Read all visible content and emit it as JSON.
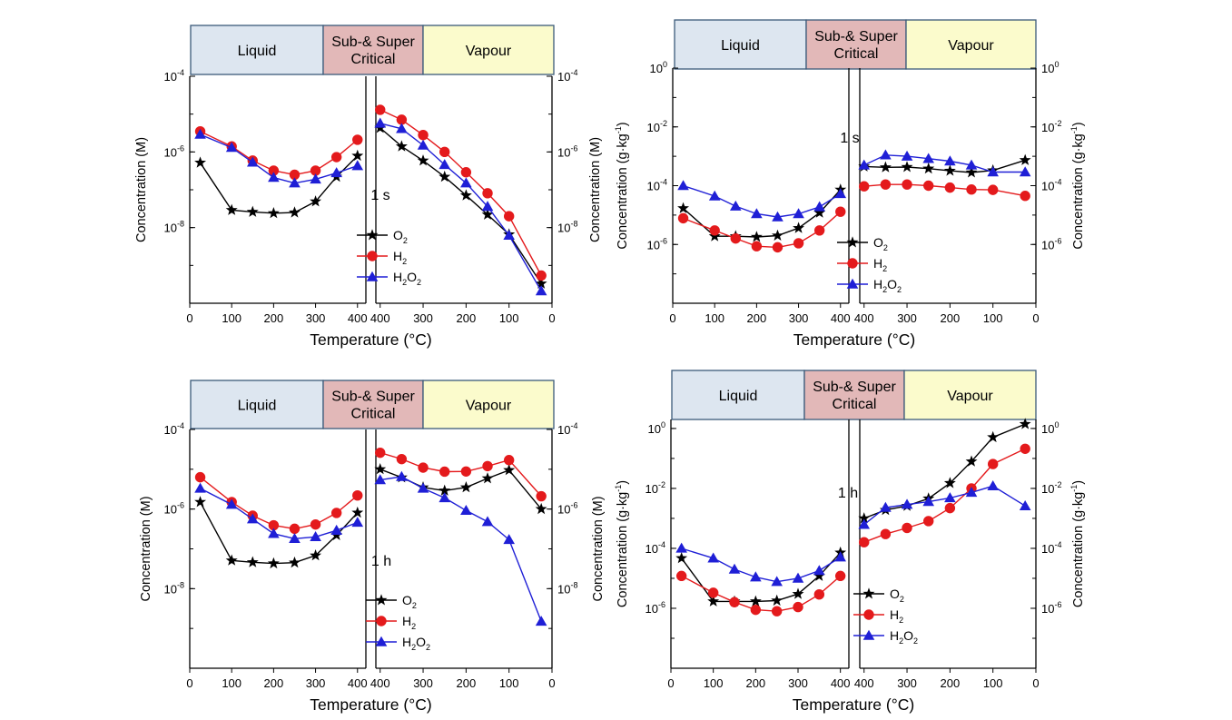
{
  "colors": {
    "O2": "#000000",
    "H2": "#e41a1c",
    "H2O2": "#1f1fd6",
    "liquid_bg": "#dde6f0",
    "critical_bg": "#e2b8b8",
    "vapour_bg": "#fbfbcc",
    "banner_border": "#3b5a7a"
  },
  "chart_data": [
    {
      "id": "top-left",
      "type": "line",
      "annotation": "1 s",
      "unit": "M",
      "xlabel": "Temperature (°C)",
      "ylabel_left": "Concentration (M)",
      "ylabel_right": "Concentration (M)",
      "scale": "log",
      "banner": {
        "liquid": "Liquid",
        "critical": [
          "Sub-& Super",
          "Critical"
        ],
        "vapour": "Vapour"
      },
      "left_panel": {
        "xlim": [
          0,
          420
        ],
        "xticks": [
          0,
          100,
          200,
          300,
          400
        ],
        "ylim_exp": [
          -10,
          -4
        ],
        "yticks_exp": [
          -4,
          -6,
          -8
        ],
        "series": [
          {
            "name": "O",
            "sub": "2",
            "key": "O2",
            "marker": "star",
            "x": [
              25,
              100,
              150,
              200,
              250,
              300,
              350,
              400
            ],
            "y": [
              5.2e-07,
              2.9e-08,
              2.6e-08,
              2.4e-08,
              2.5e-08,
              4.9e-08,
              2.2e-07,
              7.9e-07
            ]
          },
          {
            "name": "H",
            "sub": "2",
            "key": "H2",
            "marker": "circle",
            "x": [
              25,
              100,
              150,
              200,
              250,
              300,
              350,
              400
            ],
            "y": [
              3.5e-06,
              1.4e-06,
              5.9e-07,
              3.2e-07,
              2.5e-07,
              3.2e-07,
              7.3e-07,
              2.1e-06
            ]
          },
          {
            "name": "H",
            "sub": "2",
            "name2": "O",
            "sub2": "2",
            "key": "H2O2",
            "marker": "triangle",
            "x": [
              25,
              100,
              150,
              200,
              250,
              300,
              350,
              400
            ],
            "y": [
              2.9e-06,
              1.3e-06,
              5.3e-07,
              2.1e-07,
              1.5e-07,
              1.9e-07,
              2.8e-07,
              4.3e-07
            ]
          }
        ]
      },
      "right_panel": {
        "xlim": [
          410,
          0
        ],
        "xticks": [
          400,
          300,
          200,
          100,
          0
        ],
        "ylim_exp": [
          -10,
          -4
        ],
        "yticks_exp": [
          -4,
          -6,
          -8
        ],
        "series": [
          {
            "key": "O2",
            "marker": "star",
            "x": [
              400,
              350,
              300,
              250,
              200,
              150,
              100,
              25
            ],
            "y": [
              4.3e-06,
              1.4e-06,
              5.9e-07,
              2.2e-07,
              7.1e-08,
              2.2e-08,
              6.6e-09,
              3.3e-10
            ]
          },
          {
            "key": "H2",
            "marker": "circle",
            "x": [
              400,
              350,
              300,
              250,
              200,
              150,
              100,
              25
            ],
            "y": [
              1.3e-05,
              7.1e-06,
              2.8e-06,
              1e-06,
              2.9e-07,
              8.1e-08,
              2e-08,
              5.4e-10
            ]
          },
          {
            "key": "H2O2",
            "marker": "triangle",
            "x": [
              400,
              350,
              300,
              250,
              200,
              150,
              100,
              25
            ],
            "y": [
              5.7e-06,
              4.1e-06,
              1.5e-06,
              4.6e-07,
              1.5e-07,
              3.6e-08,
              6.2e-09,
              2.1e-10
            ]
          }
        ]
      }
    },
    {
      "id": "top-right",
      "type": "line",
      "annotation": "1 s",
      "unit": "g·kg-1",
      "xlabel": "Temperature (°C)",
      "ylabel_left": "Concentration (g·kg",
      "ylabel_right": "Concentration (g·kg",
      "ylabel_sup": "-1",
      "scale": "log",
      "banner": {
        "liquid": "Liquid",
        "critical": [
          "Sub-& Super",
          "Critical"
        ],
        "vapour": "Vapour"
      },
      "left_panel": {
        "xlim": [
          0,
          420
        ],
        "xticks": [
          0,
          100,
          200,
          300,
          400
        ],
        "ylim_exp": [
          -8,
          0
        ],
        "yticks_exp": [
          0,
          -2,
          -4,
          -6
        ],
        "series": [
          {
            "name": "O",
            "sub": "2",
            "key": "O2",
            "marker": "star",
            "x": [
              25,
              100,
              150,
              200,
              250,
              300,
              350,
              400
            ],
            "y": [
              1.7e-05,
              1.9e-06,
              1.9e-06,
              1.8e-06,
              2e-06,
              3.6e-06,
              1.2e-05,
              7.3e-05
            ]
          },
          {
            "name": "H",
            "sub": "2",
            "key": "H2",
            "marker": "circle",
            "x": [
              25,
              100,
              150,
              200,
              250,
              300,
              350,
              400
            ],
            "y": [
              7.8e-06,
              3e-06,
              1.6e-06,
              8.7e-07,
              8e-07,
              1.1e-06,
              3e-06,
              1.3e-05
            ]
          },
          {
            "name": "H",
            "sub": "2",
            "name2": "O",
            "sub2": "2",
            "key": "H2O2",
            "marker": "triangle",
            "x": [
              25,
              100,
              150,
              200,
              250,
              300,
              350,
              400
            ],
            "y": [
              0.0001,
              4.4e-05,
              2e-05,
              1.1e-05,
              8.6e-06,
              1.1e-05,
              1.9e-05,
              5.3e-05
            ]
          }
        ]
      },
      "right_panel": {
        "xlim": [
          410,
          0
        ],
        "xticks": [
          400,
          300,
          200,
          100,
          0
        ],
        "ylim_exp": [
          -8,
          0
        ],
        "yticks_exp": [
          0,
          -2,
          -4,
          -6
        ],
        "series": [
          {
            "key": "O2",
            "marker": "star",
            "x": [
              400,
              350,
              300,
              250,
              200,
              150,
              100,
              25
            ],
            "y": [
              0.00045,
              0.00042,
              0.00043,
              0.00038,
              0.00032,
              0.00028,
              0.00033,
              0.00074
            ]
          },
          {
            "key": "H2",
            "marker": "circle",
            "x": [
              400,
              350,
              300,
              250,
              200,
              150,
              100,
              25
            ],
            "y": [
              9.5e-05,
              0.00011,
              0.00011,
              0.0001,
              8.6e-05,
              7.4e-05,
              7.2e-05,
              4.5e-05
            ]
          },
          {
            "key": "H2O2",
            "marker": "triangle",
            "x": [
              400,
              350,
              300,
              250,
              200,
              150,
              100,
              25
            ],
            "y": [
              0.0005,
              0.0011,
              0.001,
              0.00083,
              0.00068,
              0.0005,
              0.00029,
              0.00029
            ]
          }
        ]
      }
    },
    {
      "id": "bottom-left",
      "type": "line",
      "annotation": "1 h",
      "unit": "M",
      "xlabel": "Temperature (°C)",
      "ylabel_left": "Concentration (M)",
      "ylabel_right": "Concentration (M)",
      "scale": "log",
      "banner": {
        "liquid": "Liquid",
        "critical": [
          "Sub-& Super",
          "Critical"
        ],
        "vapour": "Vapour"
      },
      "left_panel": {
        "xlim": [
          0,
          420
        ],
        "xticks": [
          0,
          100,
          200,
          300,
          400
        ],
        "ylim_exp": [
          -10,
          -4
        ],
        "yticks_exp": [
          -4,
          -6,
          -8
        ],
        "series": [
          {
            "name": "O",
            "sub": "2",
            "key": "O2",
            "marker": "star",
            "x": [
              25,
              100,
              150,
              200,
              250,
              300,
              350,
              400
            ],
            "y": [
              1.5e-06,
              5.1e-08,
              4.6e-08,
              4.3e-08,
              4.5e-08,
              6.8e-08,
              2.2e-07,
              8.1e-07
            ]
          },
          {
            "name": "H",
            "sub": "2",
            "key": "H2",
            "marker": "circle",
            "x": [
              25,
              100,
              150,
              200,
              250,
              300,
              350,
              400
            ],
            "y": [
              6.3e-06,
              1.5e-06,
              6.8e-07,
              3.9e-07,
              3.2e-07,
              4.1e-07,
              8e-07,
              2.2e-06
            ]
          },
          {
            "name": "H",
            "sub": "2",
            "name2": "O",
            "sub2": "2",
            "key": "H2O2",
            "marker": "triangle",
            "x": [
              25,
              100,
              150,
              200,
              250,
              300,
              350,
              400
            ],
            "y": [
              3.3e-06,
              1.3e-06,
              5.6e-07,
              2.4e-07,
              1.8e-07,
              2e-07,
              2.9e-07,
              4.6e-07
            ]
          }
        ]
      },
      "right_panel": {
        "xlim": [
          410,
          0
        ],
        "xticks": [
          400,
          300,
          200,
          100,
          0
        ],
        "ylim_exp": [
          -10,
          -4
        ],
        "yticks_exp": [
          -4,
          -6,
          -8
        ],
        "series": [
          {
            "key": "O2",
            "marker": "star",
            "x": [
              400,
              350,
              300,
              250,
              200,
              150,
              100,
              25
            ],
            "y": [
              1e-05,
              6.2e-06,
              3.5e-06,
              2.9e-06,
              3.5e-06,
              5.9e-06,
              9.5e-06,
              1e-06
            ]
          },
          {
            "key": "H2",
            "marker": "circle",
            "x": [
              400,
              350,
              300,
              250,
              200,
              150,
              100,
              25
            ],
            "y": [
              2.6e-05,
              1.8e-05,
              1.1e-05,
              8.7e-06,
              8.8e-06,
              1.2e-05,
              1.7e-05,
              2.1e-06
            ]
          },
          {
            "key": "H2O2",
            "marker": "triangle",
            "x": [
              400,
              350,
              300,
              250,
              200,
              150,
              100,
              25
            ],
            "y": [
              5.4e-06,
              6.5e-06,
              3.3e-06,
              1.9e-06,
              9.2e-07,
              4.8e-07,
              1.7e-07,
              1.5e-09
            ]
          }
        ]
      }
    },
    {
      "id": "bottom-right",
      "type": "line",
      "annotation": "1 h",
      "unit": "g·kg-1",
      "xlabel": "Temperature (°C)",
      "ylabel_left": "Concentration (g·kg",
      "ylabel_right": "Concentration (g·kg",
      "ylabel_sup": "-1",
      "scale": "log",
      "banner": {
        "liquid": "Liquid",
        "critical": [
          "Sub-& Super",
          "Critical"
        ],
        "vapour": "Vapour"
      },
      "left_panel": {
        "xlim": [
          0,
          420
        ],
        "xticks": [
          0,
          100,
          200,
          300,
          400
        ],
        "ylim_exp": [
          -8,
          0.3
        ],
        "yticks_exp": [
          0,
          -2,
          -4,
          -6
        ],
        "series": [
          {
            "name": "O",
            "sub": "2",
            "key": "O2",
            "marker": "star",
            "x": [
              25,
              100,
              150,
              200,
              250,
              300,
              350,
              400
            ],
            "y": [
              4.7e-05,
              1.7e-06,
              1.7e-06,
              1.7e-06,
              1.8e-06,
              3e-06,
              1.2e-05,
              7.2e-05
            ]
          },
          {
            "name": "H",
            "sub": "2",
            "key": "H2",
            "marker": "circle",
            "x": [
              25,
              100,
              150,
              200,
              250,
              300,
              350,
              400
            ],
            "y": [
              1.2e-05,
              3.3e-06,
              1.6e-06,
              8.9e-07,
              8e-07,
              1.1e-06,
              2.9e-06,
              1.2e-05
            ]
          },
          {
            "name": "H",
            "sub": "2",
            "name2": "O",
            "sub2": "2",
            "key": "H2O2",
            "marker": "triangle",
            "x": [
              25,
              100,
              150,
              200,
              250,
              300,
              350,
              400
            ],
            "y": [
              0.0001,
              4.7e-05,
              2e-05,
              1.1e-05,
              7.7e-06,
              1e-05,
              1.8e-05,
              5.1e-05
            ]
          }
        ]
      },
      "right_panel": {
        "xlim": [
          410,
          0
        ],
        "xticks": [
          400,
          300,
          200,
          100,
          0
        ],
        "ylim_exp": [
          -8,
          0.3
        ],
        "yticks_exp": [
          0,
          -2,
          -4,
          -6
        ],
        "series": [
          {
            "key": "O2",
            "marker": "star",
            "x": [
              400,
              350,
              300,
              250,
              200,
              150,
              100,
              25
            ],
            "y": [
              0.001,
              0.0019,
              0.0026,
              0.0046,
              0.015,
              0.079,
              0.51,
              1.4
            ]
          },
          {
            "key": "H2",
            "marker": "circle",
            "x": [
              400,
              350,
              300,
              250,
              200,
              150,
              100,
              25
            ],
            "y": [
              0.00016,
              0.0003,
              0.00048,
              0.00081,
              0.0022,
              0.01,
              0.065,
              0.21
            ]
          },
          {
            "key": "H2O2",
            "marker": "triangle",
            "x": [
              400,
              350,
              300,
              250,
              200,
              150,
              100,
              25
            ],
            "y": [
              0.00062,
              0.0023,
              0.0029,
              0.0036,
              0.0048,
              0.0073,
              0.012,
              0.0026
            ]
          }
        ]
      }
    }
  ]
}
